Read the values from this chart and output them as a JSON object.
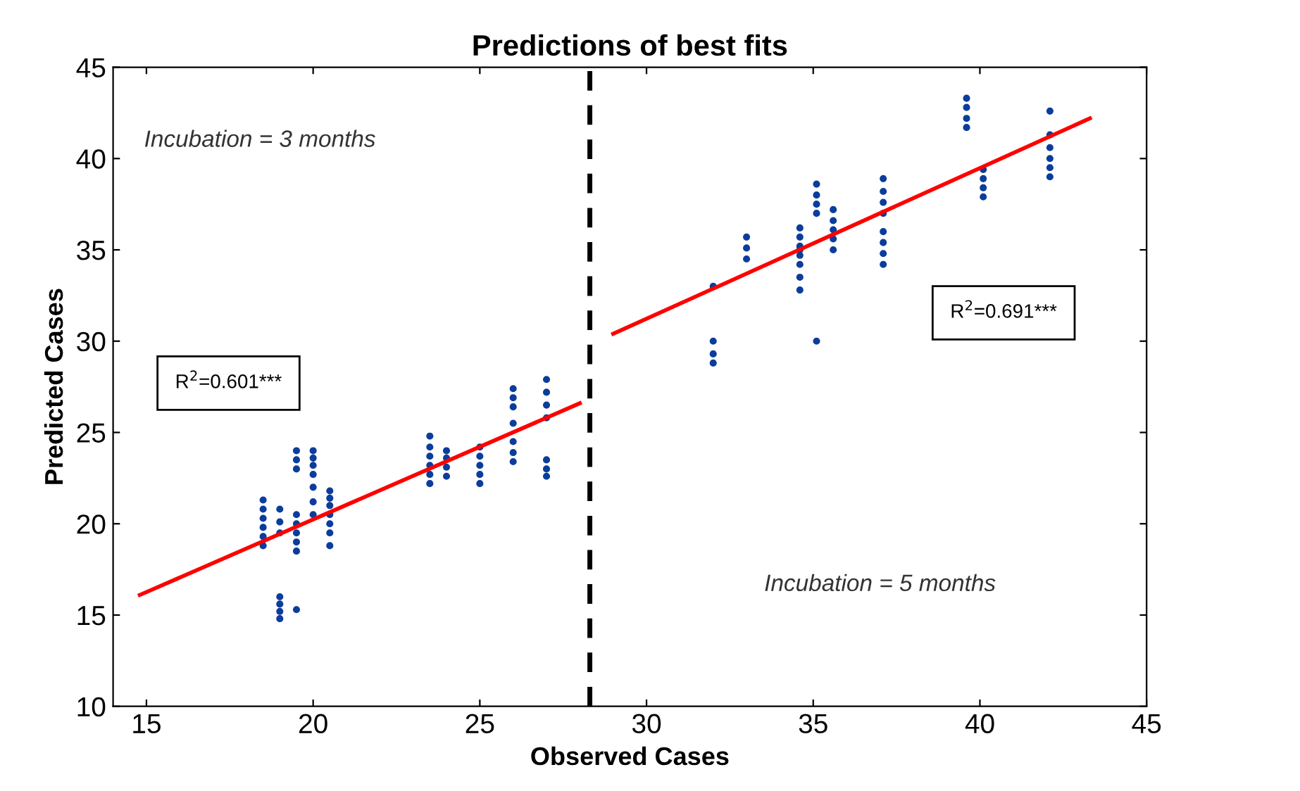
{
  "chart_data": {
    "type": "scatter",
    "title": "Predictions of best fits",
    "xlabel": "Observed Cases",
    "ylabel": "Predicted Cases",
    "xlim": [
      14,
      45
    ],
    "ylim": [
      10,
      45
    ],
    "xticks": [
      15,
      20,
      25,
      30,
      35,
      40,
      45
    ],
    "yticks": [
      10,
      15,
      20,
      25,
      30,
      35,
      40,
      45
    ],
    "grid": false,
    "legend": false,
    "marker": "circle",
    "series": [
      {
        "type": "scatter",
        "color": "#0b3d9c",
        "x": [
          18.5,
          18.5,
          18.5,
          18.5,
          18.5,
          18.5,
          19,
          19,
          19,
          19,
          19,
          19,
          19,
          19.5,
          19.5,
          19.5,
          19.5,
          19.5,
          19.5,
          19.5,
          19.5,
          19.5,
          20,
          20,
          20,
          20,
          20,
          20,
          20,
          20.5,
          20.5,
          20.5,
          20.5,
          20.5,
          20.5,
          20.5,
          23.5,
          23.5,
          23.5,
          23.5,
          23.5,
          23.5,
          24,
          24,
          24,
          24,
          25,
          25,
          25,
          25,
          25,
          26,
          26,
          26,
          26,
          26,
          26,
          26,
          27,
          27,
          27,
          27,
          27,
          27,
          27,
          32,
          32,
          32,
          32,
          33,
          33,
          33,
          34.6,
          34.6,
          34.6,
          34.6,
          34.6,
          34.6,
          34.6,
          34.6,
          35.1,
          35.1,
          35.1,
          35.1,
          35.1,
          35.6,
          35.6,
          35.6,
          35.6,
          35.6,
          37.1,
          37.1,
          37.1,
          37.1,
          37.1,
          37.1,
          37.1,
          37.1,
          39.6,
          39.6,
          39.6,
          39.6,
          40.1,
          40.1,
          40.1,
          40.1,
          42.1,
          42.1,
          42.1,
          42.1,
          42.1,
          42.1
        ],
        "values": [
          18.8,
          19.3,
          19.8,
          20.3,
          20.8,
          21.3,
          19.5,
          20.1,
          20.8,
          14.8,
          15.2,
          15.6,
          16.0,
          18.5,
          19.0,
          19.5,
          20.0,
          20.5,
          23.0,
          23.5,
          24.0,
          15.3,
          20.5,
          21.2,
          22.0,
          22.7,
          23.2,
          23.6,
          24.0,
          18.8,
          19.5,
          20.0,
          20.5,
          21.0,
          21.4,
          21.8,
          22.2,
          22.7,
          23.2,
          23.7,
          24.2,
          24.8,
          22.6,
          23.1,
          23.6,
          24.0,
          22.2,
          22.7,
          23.2,
          23.7,
          24.2,
          23.4,
          23.9,
          24.5,
          25.5,
          26.4,
          26.9,
          27.4,
          22.6,
          23.0,
          23.5,
          25.8,
          26.5,
          27.2,
          27.9,
          28.8,
          29.3,
          30.0,
          33.0,
          34.5,
          35.1,
          35.7,
          32.8,
          33.5,
          34.2,
          34.7,
          35.2,
          35.7,
          36.2,
          35.0,
          37.0,
          37.5,
          38.0,
          38.6,
          30.0,
          35.0,
          35.6,
          36.1,
          36.6,
          37.2,
          34.2,
          34.8,
          35.4,
          36.0,
          37.0,
          37.6,
          38.2,
          38.9,
          41.7,
          42.2,
          42.8,
          43.3,
          37.9,
          38.4,
          38.9,
          39.4,
          39.0,
          39.5,
          40.0,
          40.6,
          41.3,
          42.6
        ]
      },
      {
        "type": "line",
        "color": "#ff0000",
        "marker": "none",
        "x": [
          14.8,
          28
        ],
        "values": [
          16.1,
          26.6
        ]
      },
      {
        "type": "line",
        "color": "#ff0000",
        "marker": "none",
        "x": [
          29,
          43.3
        ],
        "values": [
          30.4,
          42.2
        ]
      }
    ],
    "ref_lines": [
      {
        "axis": "x",
        "value": 28.3,
        "color": "#000000",
        "line_style": "dashed"
      }
    ],
    "annotations": [
      "Incubation = 3 months",
      "Incubation = 5 months",
      "R$^{2}$=0.601***",
      "R$^{2}$=0.691***"
    ]
  }
}
